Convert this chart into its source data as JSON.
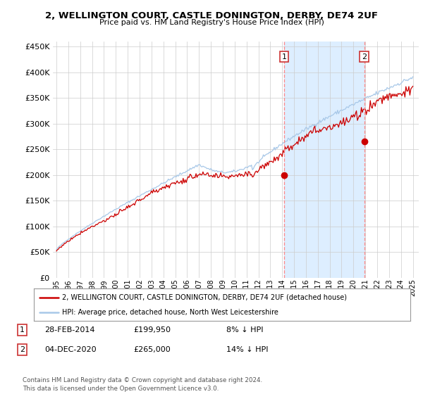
{
  "title": "2, WELLINGTON COURT, CASTLE DONINGTON, DERBY, DE74 2UF",
  "subtitle": "Price paid vs. HM Land Registry's House Price Index (HPI)",
  "ytick_values": [
    0,
    50000,
    100000,
    150000,
    200000,
    250000,
    300000,
    350000,
    400000,
    450000
  ],
  "ylim": [
    0,
    460000
  ],
  "xlim_start": 1994.7,
  "xlim_end": 2025.5,
  "hpi_color": "#a8c8e8",
  "price_color": "#cc0000",
  "sale1_x": 2014.17,
  "sale1_y": 199950,
  "sale2_x": 2020.92,
  "sale2_y": 265000,
  "vline1_x": 2014.17,
  "vline2_x": 2020.92,
  "vline_color": "#ff8888",
  "highlight_color": "#ddeeff",
  "legend_line1": "2, WELLINGTON COURT, CASTLE DONINGTON, DERBY, DE74 2UF (detached house)",
  "legend_line2": "HPI: Average price, detached house, North West Leicestershire",
  "table_rows": [
    {
      "num": "1",
      "date": "28-FEB-2014",
      "price": "£199,950",
      "hpi": "8% ↓ HPI"
    },
    {
      "num": "2",
      "date": "04-DEC-2020",
      "price": "£265,000",
      "hpi": "14% ↓ HPI"
    }
  ],
  "footnote": "Contains HM Land Registry data © Crown copyright and database right 2024.\nThis data is licensed under the Open Government Licence v3.0.",
  "background_color": "#ffffff",
  "grid_color": "#cccccc",
  "xtick_years": [
    1995,
    1996,
    1997,
    1998,
    1999,
    2000,
    2001,
    2002,
    2003,
    2004,
    2005,
    2006,
    2007,
    2008,
    2009,
    2010,
    2011,
    2012,
    2013,
    2014,
    2015,
    2016,
    2017,
    2018,
    2019,
    2020,
    2021,
    2022,
    2023,
    2024,
    2025
  ]
}
